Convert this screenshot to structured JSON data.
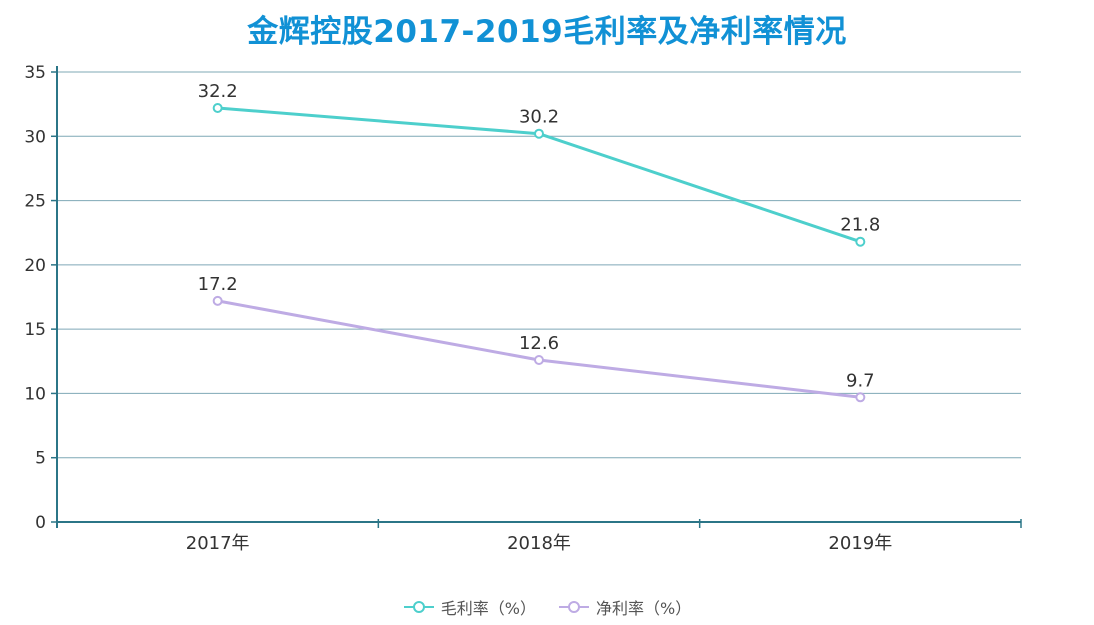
{
  "chart_data": {
    "type": "line",
    "title": "金辉控股2017-2019毛利率及净利率情况",
    "categories": [
      "2017年",
      "2018年",
      "2019年"
    ],
    "series": [
      {
        "name": "毛利率（%）",
        "values": [
          32.2,
          30.2,
          21.8
        ],
        "color": "#4DCFCC",
        "labels": [
          "32.2",
          "30.2",
          "21.8"
        ]
      },
      {
        "name": "净利率（%）",
        "values": [
          17.2,
          12.6,
          9.7
        ],
        "color": "#BEABE4",
        "labels": [
          "17.2",
          "12.6",
          "9.7"
        ]
      }
    ],
    "ylim": [
      0,
      35
    ],
    "ytick_step": 5,
    "grid": true,
    "legend_position": "bottom",
    "marker": "hollow-circle",
    "xlabel": "",
    "ylabel": ""
  },
  "colors": {
    "title": "#1191D5",
    "axis": "#2B7587",
    "gridline": "#7FA8B6",
    "tick_label": "#333333",
    "data_label": "#333333",
    "legend_text": "#555555",
    "marker_fill": "#FFFFFF",
    "background": "#FFFFFF"
  }
}
